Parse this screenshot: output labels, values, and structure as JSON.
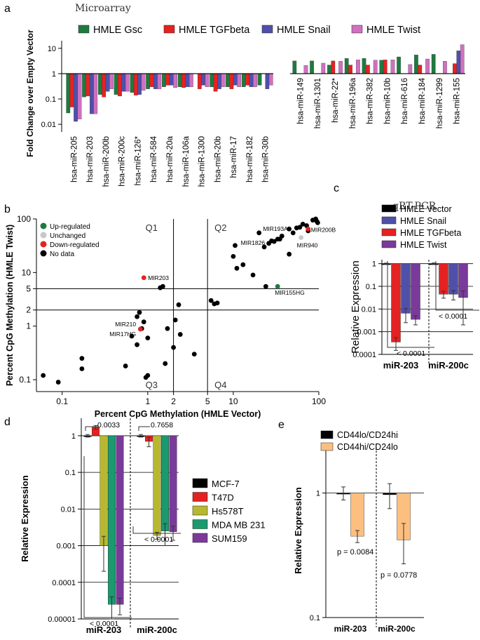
{
  "colors": {
    "green": "#1f7a3f",
    "red": "#e52222",
    "blue": "#5050aa",
    "pink": "#d070c0",
    "black": "#000000",
    "grey": "#c8c8c8",
    "purple": "#7a3a9a",
    "olive": "#b8b830",
    "teal": "#1a9a6e",
    "orange": "#fdbf7f"
  },
  "chart_data": [
    {
      "panel": "a",
      "type": "bar",
      "title": "Microarray",
      "ylabel": "Fold Change over Empty Vector",
      "yscale": "log",
      "ylim": [
        0.005,
        20
      ],
      "yticks": [
        {
          "v": 0.01,
          "l": "0.01"
        },
        {
          "v": 0.1,
          "l": "0.1"
        },
        {
          "v": 1,
          "l": "1"
        },
        {
          "v": 10,
          "l": "10"
        }
      ],
      "legend": [
        "HMLE Gsc",
        "HMLE TGFbeta",
        "HMLE Snail",
        "HMLE Twist"
      ],
      "categories": [
        "hsa-miR-205",
        "hsa-miR-203",
        "hsa-miR-200b",
        "hsa-miR-200c",
        "hsa-miR-126*",
        "hsa-miR-584",
        "hsa-miR-20a",
        "hsa-miR-106a",
        "hsa-miR-1300",
        "hsa-miR-20b",
        "hsa-miR-17",
        "hsa-miR-182",
        "hsa-miR-30b",
        "hsa-miR-149",
        "hsa-miR-1301",
        "hsa-miR-22*",
        "hsa-miR-196a",
        "hsa-miR-382",
        "hsa-miR-10b",
        "hsa-miR-616",
        "hsa-miR-184",
        "hsa-miR-1299",
        "hsa-miR-155"
      ],
      "series": [
        {
          "name": "HMLE Gsc",
          "values": [
            0.028,
            0.12,
            0.15,
            0.15,
            0.18,
            0.25,
            0.3,
            0.3,
            null,
            0.3,
            0.3,
            0.3,
            0.35,
            3.2,
            3.2,
            2.2,
            4,
            4,
            3.4,
            4.6,
            5.5,
            5.8,
            null
          ]
        },
        {
          "name": "HMLE TGFbeta",
          "values": [
            0.048,
            0.13,
            0.12,
            0.13,
            0.14,
            0.3,
            0.35,
            0.28,
            0.25,
            0.2,
            0.25,
            0.35,
            null,
            null,
            null,
            3.2,
            2.2,
            2.2,
            3.5,
            null,
            2.2,
            null,
            2.5
          ]
        },
        {
          "name": "HMLE Snail",
          "values": [
            0.013,
            0.026,
            0.2,
            0.2,
            0.15,
            0.25,
            0.35,
            0.3,
            0.35,
            0.25,
            0.35,
            0.3,
            0.25,
            null,
            null,
            null,
            null,
            null,
            null,
            null,
            null,
            null,
            8
          ]
        },
        {
          "name": "HMLE Twist",
          "values": [
            0.016,
            0.026,
            0.25,
            0.2,
            0.22,
            0.25,
            0.28,
            0.3,
            0.3,
            0.3,
            0.3,
            0.3,
            0.35,
            2.1,
            2.6,
            3.1,
            3.5,
            3.4,
            3.5,
            2.3,
            3.8,
            3.1,
            14
          ]
        }
      ]
    },
    {
      "panel": "b",
      "type": "scatter",
      "xlabel": "Percent CpG Methylation (HMLE Vector)",
      "ylabel": "Percent CpG Methylation (HMLE Twist)",
      "xscale": "log",
      "yscale": "log",
      "xlim": [
        0.05,
        100
      ],
      "ylim": [
        0.06,
        100
      ],
      "xticks": [
        {
          "v": 0.1,
          "l": "0.1"
        },
        {
          "v": 1,
          "l": "1"
        },
        {
          "v": 2,
          "l": "2"
        },
        {
          "v": 5,
          "l": "5"
        },
        {
          "v": 10,
          "l": "10"
        },
        {
          "v": 100,
          "l": "100"
        }
      ],
      "yticks": [
        {
          "v": 0.1,
          "l": "0.1"
        },
        {
          "v": 1,
          "l": "1"
        },
        {
          "v": 2,
          "l": "2"
        },
        {
          "v": 5,
          "l": "5"
        },
        {
          "v": 10,
          "l": "10"
        },
        {
          "v": 100,
          "l": "100"
        }
      ],
      "quadrants": [
        "Q1",
        "Q2",
        "Q3",
        "Q4"
      ],
      "legend": [
        "Up-regulated",
        "Unchanged",
        "Down-regulated",
        "No data"
      ],
      "points_black": [
        [
          0.06,
          0.12
        ],
        [
          0.09,
          0.09
        ],
        [
          0.17,
          0.25
        ],
        [
          0.17,
          0.16
        ],
        [
          0.55,
          0.18
        ],
        [
          0.75,
          0.45
        ],
        [
          0.95,
          0.11
        ],
        [
          1.0,
          0.12
        ],
        [
          0.65,
          0.65
        ],
        [
          0.75,
          1.5
        ],
        [
          0.8,
          1.8
        ],
        [
          0.85,
          0.9
        ],
        [
          0.9,
          1.2
        ],
        [
          1.0,
          0.6
        ],
        [
          1.4,
          5.2
        ],
        [
          1.5,
          5.5
        ],
        [
          2.0,
          0.4
        ],
        [
          2.3,
          2.5
        ],
        [
          1.6,
          0.2
        ],
        [
          1.7,
          0.9
        ],
        [
          2.1,
          1.3
        ],
        [
          2.4,
          0.7
        ],
        [
          3.5,
          0.3
        ],
        [
          5.5,
          3
        ],
        [
          6,
          2.6
        ],
        [
          6.5,
          2.7
        ],
        [
          10,
          20
        ],
        [
          10.5,
          32
        ],
        [
          11,
          12
        ],
        [
          13,
          14
        ],
        [
          17,
          9
        ],
        [
          20,
          55
        ],
        [
          23,
          30
        ],
        [
          24,
          5.5
        ],
        [
          26,
          35
        ],
        [
          28,
          39
        ],
        [
          30,
          38
        ],
        [
          33,
          42
        ],
        [
          35,
          42
        ],
        [
          37,
          48
        ],
        [
          45,
          65
        ],
        [
          50,
          55
        ],
        [
          55,
          68
        ],
        [
          60,
          70
        ],
        [
          65,
          80
        ],
        [
          72,
          75
        ],
        [
          75,
          60
        ],
        [
          85,
          95
        ],
        [
          92,
          100
        ],
        [
          95,
          90
        ],
        [
          97,
          85
        ],
        [
          45,
          22
        ]
      ],
      "points_red": [
        [
          0.9,
          8
        ],
        [
          0.82,
          0.88
        ],
        [
          75,
          65
        ]
      ],
      "points_green": [
        [
          33,
          5.5
        ]
      ],
      "points_grey": [
        [
          62,
          45
        ]
      ],
      "annotations": [
        {
          "text": "MIR203",
          "x": 0.9,
          "y": 8
        },
        {
          "text": "MIR210",
          "x": 0.82,
          "y": 0.88
        },
        {
          "text": "MIR17HG",
          "x": 0.82,
          "y": 0.88
        },
        {
          "text": "MIR193A",
          "x": 35,
          "y": 42
        },
        {
          "text": "MIR200B",
          "x": 75,
          "y": 65
        },
        {
          "text": "MIR1826",
          "x": 26,
          "y": 35
        },
        {
          "text": "MIR940",
          "x": 62,
          "y": 45
        },
        {
          "text": "MIR155HG",
          "x": 33,
          "y": 5.5
        }
      ]
    },
    {
      "panel": "c",
      "type": "bar",
      "title": "qRT-PCR",
      "ylabel": "Relative Expression",
      "yscale": "log",
      "ylim": [
        0.0001,
        1.5
      ],
      "yticks": [
        {
          "v": 0.0001,
          "l": "0.0001"
        },
        {
          "v": 0.001,
          "l": "0.001"
        },
        {
          "v": 0.01,
          "l": "0.01"
        },
        {
          "v": 0.1,
          "l": "0.1"
        },
        {
          "v": 1,
          "l": "1"
        }
      ],
      "categories": [
        "miR-203",
        "miR-200c"
      ],
      "legend": [
        "HMLE Vector",
        "HMLE Snail",
        "HMLE TGFbeta",
        "HMLE Twist"
      ],
      "series": [
        {
          "name": "HMLE Vector",
          "values": [
            1,
            1
          ],
          "err": [
            0.05,
            0.07
          ]
        },
        {
          "name": "HMLE TGFbeta",
          "values": [
            0.00035,
            0.045
          ],
          "err": [
            0.0002,
            0.015
          ]
        },
        {
          "name": "HMLE Snail",
          "values": [
            0.0065,
            0.045
          ],
          "err": [
            0.004,
            0.02
          ]
        },
        {
          "name": "HMLE Twist",
          "values": [
            0.0035,
            0.032
          ],
          "err": [
            0.0015,
            0.03
          ]
        }
      ],
      "pvalues": [
        "< 0.0001",
        "< 0.0001"
      ]
    },
    {
      "panel": "d",
      "type": "bar",
      "ylabel": "Relative Expression",
      "yscale": "log",
      "ylim": [
        1e-05,
        3
      ],
      "yticks": [
        {
          "v": 1e-05,
          "l": "0.00001"
        },
        {
          "v": 0.0001,
          "l": "0.0001"
        },
        {
          "v": 0.001,
          "l": "0.001"
        },
        {
          "v": 0.01,
          "l": "0.01"
        },
        {
          "v": 0.1,
          "l": "0.1"
        },
        {
          "v": 1,
          "l": "1"
        }
      ],
      "categories": [
        "miR-203",
        "miR-200c"
      ],
      "legend": [
        "MCF-7",
        "T47D",
        "Hs578T",
        "MDA MB 231",
        "SUM159"
      ],
      "series": [
        {
          "name": "MCF-7",
          "values": [
            1,
            1
          ],
          "err": [
            0.08,
            0.08
          ]
        },
        {
          "name": "T47D",
          "values": [
            1.7,
            0.7
          ],
          "err": [
            0.2,
            0.2
          ]
        },
        {
          "name": "Hs578T",
          "values": [
            0.001,
            0.0019
          ],
          "err": [
            0.0008,
            0.0004
          ]
        },
        {
          "name": "MDA MB 231",
          "values": [
            2.5e-05,
            0.0025
          ],
          "err": [
            1.5e-05,
            0.0015
          ]
        },
        {
          "name": "SUM159",
          "values": [
            2.5e-05,
            0.0024
          ],
          "err": [
            1.2e-05,
            0.001
          ]
        }
      ],
      "pvalues": [
        "0.0033",
        "0.7658",
        "< 0.0001",
        "< 0.0001"
      ]
    },
    {
      "panel": "e",
      "type": "bar",
      "ylabel": "Relative Expression",
      "yscale": "log",
      "ylim": [
        0.1,
        2.5
      ],
      "yticks": [
        {
          "v": 0.1,
          "l": "0.1"
        },
        {
          "v": 1,
          "l": "1"
        }
      ],
      "categories": [
        "miR-203",
        "miR-200c"
      ],
      "legend": [
        "CD44lo/CD24hi",
        "CD44hi/CD24lo"
      ],
      "series": [
        {
          "name": "CD44lo/CD24hi",
          "values": [
            1,
            0.97
          ],
          "err": [
            0.12,
            0.22
          ]
        },
        {
          "name": "CD44hi/CD24lo",
          "values": [
            0.45,
            0.42
          ],
          "err": [
            0.05,
            0.15
          ]
        }
      ],
      "pvalues": [
        "p = 0.0084",
        "p = 0.0778"
      ]
    }
  ],
  "panel_labels": {
    "a": "a",
    "b": "b",
    "c": "c",
    "d": "d",
    "e": "e"
  }
}
